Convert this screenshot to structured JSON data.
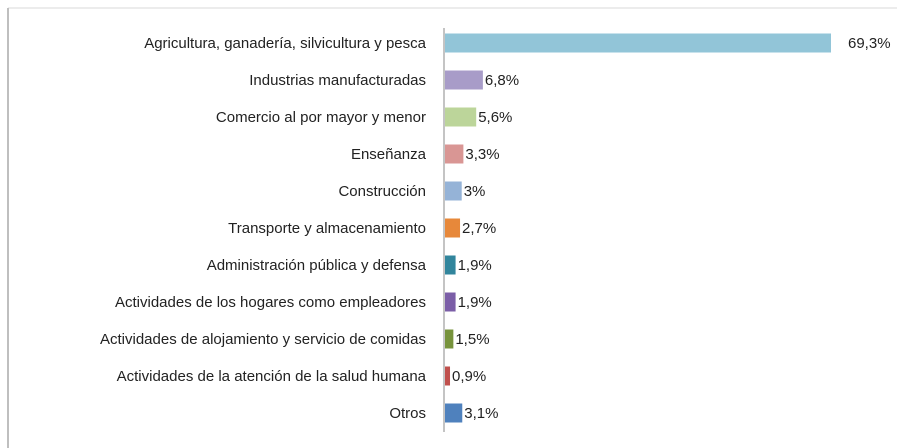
{
  "chart_data": {
    "type": "bar",
    "orientation": "horizontal",
    "categories": [
      "Agricultura, ganadería, silvicultura y pesca",
      "Industrias manufacturadas",
      "Comercio al por mayor y menor",
      "Enseñanza",
      "Construcción",
      "Transporte y almacenamiento",
      "Administración pública y defensa",
      "Actividades de los hogares como empleadores",
      "Actividades de alojamiento y servicio de comidas",
      "Actividades de la atención de la salud humana",
      "Otros"
    ],
    "values": [
      69.3,
      6.8,
      5.6,
      3.3,
      3,
      2.7,
      1.9,
      1.9,
      1.5,
      0.9,
      3.1
    ],
    "value_labels": [
      "69,3%",
      "6,8%",
      "5,6%",
      "3,3%",
      "3%",
      "2,7%",
      "1,9%",
      "1,9%",
      "1,5%",
      "0,9%",
      "3,1%"
    ],
    "colors": [
      "#92c5d8",
      "#a89cc8",
      "#bcd59a",
      "#d99694",
      "#95b3d7",
      "#e7883a",
      "#31859c",
      "#7b5ea7",
      "#77933c",
      "#c0504d",
      "#4f81bd"
    ]
  }
}
